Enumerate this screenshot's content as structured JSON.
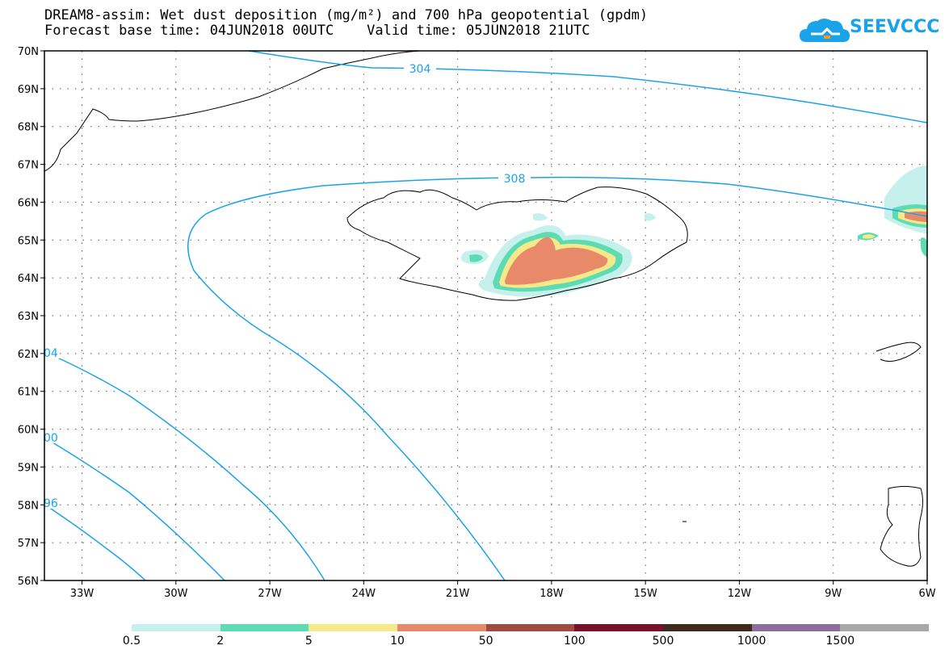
{
  "title_line1": "DREAM8-assim: Wet dust deposition (mg/m²) and 700 hPa geopotential (gpdm)",
  "title_line2": "Forecast base time: 04JUN2018 00UTC    Valid time: 05JUN2018 21UTC",
  "logo_text": "SEEVCCC",
  "logo_icon": "cloud-icon",
  "map": {
    "lon_range": [
      -34.2,
      -6
    ],
    "lat_range": [
      56,
      70
    ],
    "lat_labels": [
      "70N",
      "69N",
      "68N",
      "67N",
      "66N",
      "65N",
      "64N",
      "63N",
      "62N",
      "61N",
      "60N",
      "59N",
      "58N",
      "57N",
      "56N"
    ],
    "lon_labels": [
      "33W",
      "30W",
      "27W",
      "24W",
      "21W",
      "18W",
      "15W",
      "12W",
      "9W",
      "6W"
    ],
    "contour_labels": [
      "304",
      "308",
      "04",
      "00",
      "96"
    ],
    "contour_color": "#1aa3e8"
  },
  "legend": {
    "colors": [
      "#c6f0ec",
      "#5ddcb4",
      "#f7e98a",
      "#e88a6a",
      "#a34a40",
      "#7a0f2a",
      "#3d2a1c",
      "#8c6f9e",
      "#a8a8a8"
    ],
    "labels": [
      "0.5",
      "2",
      "5",
      "10",
      "50",
      "100",
      "500",
      "1000",
      "1500"
    ]
  }
}
